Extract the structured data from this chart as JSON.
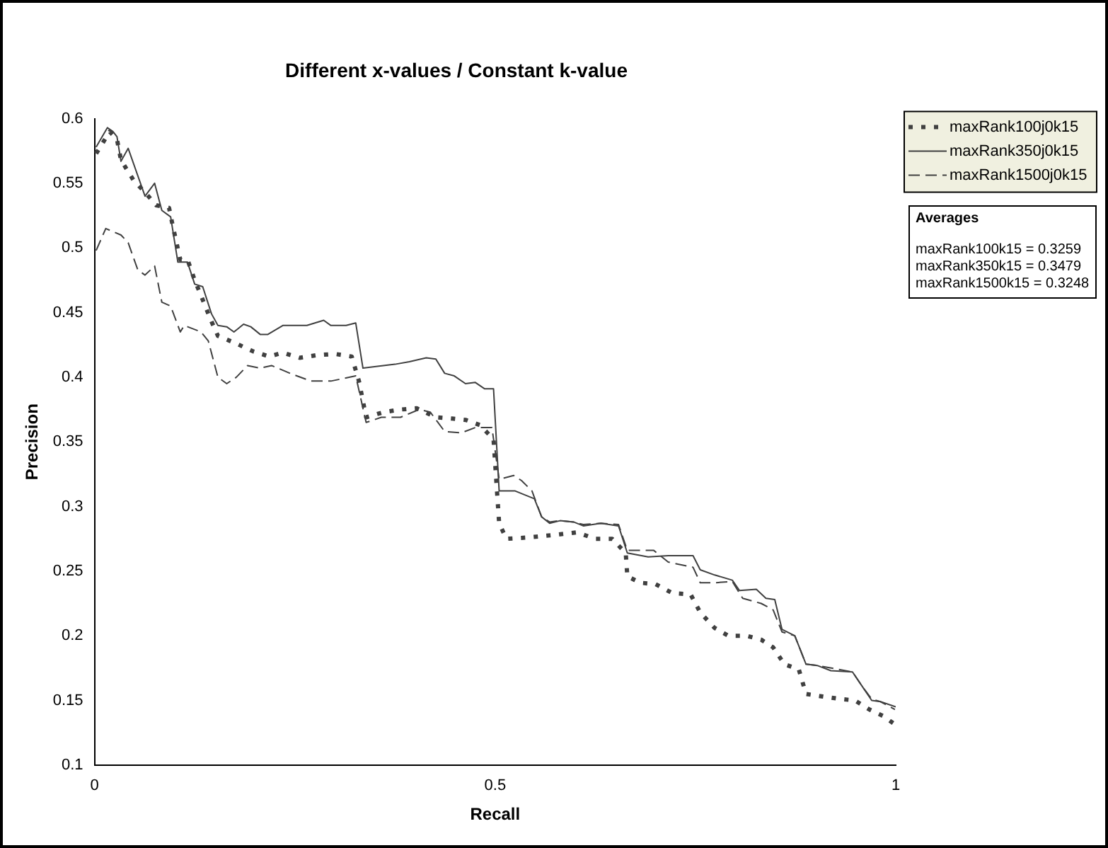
{
  "chart_data": {
    "type": "line",
    "title": "Different x-values / Constant k-value",
    "xlabel": "Recall",
    "ylabel": "Precision",
    "xlim": [
      0,
      1
    ],
    "xticks": [
      0,
      0.5,
      1
    ],
    "ylim": [
      0.1,
      0.6
    ],
    "yticks": [
      0.1,
      0.15,
      0.2,
      0.25,
      0.3,
      0.35,
      0.4,
      0.45,
      0.5,
      0.55,
      0.6
    ],
    "grid": false,
    "legend": "top right",
    "marker": "none",
    "annotations": [
      "Averages",
      "maxRank100k15 = 0.3259",
      "maxRank350k15 = 0.3479",
      "maxRank1500k15 = 0.3248"
    ],
    "series": [
      {
        "name": "maxRank100j0k15",
        "color": "#404040",
        "line_style": "dotted",
        "x": [
          0.002,
          0.019,
          0.028,
          0.033,
          0.049,
          0.063,
          0.077,
          0.093,
          0.098,
          0.107,
          0.116,
          0.125,
          0.133,
          0.146,
          0.154,
          0.177,
          0.198,
          0.218,
          0.235,
          0.256,
          0.277,
          0.3,
          0.321,
          0.33,
          0.339,
          0.361,
          0.382,
          0.402,
          0.426,
          0.446,
          0.463,
          0.481,
          0.498,
          0.505,
          0.514,
          0.54,
          0.575,
          0.602,
          0.625,
          0.646,
          0.663,
          0.665,
          0.681,
          0.7,
          0.721,
          0.744,
          0.756,
          0.774,
          0.791,
          0.814,
          0.832,
          0.847,
          0.861,
          0.879,
          0.888,
          0.909,
          0.932,
          0.949,
          0.967,
          0.984,
          1.0
        ],
        "values": [
          0.573,
          0.59,
          0.584,
          0.568,
          0.552,
          0.543,
          0.533,
          0.531,
          0.516,
          0.491,
          0.491,
          0.475,
          0.463,
          0.443,
          0.432,
          0.426,
          0.42,
          0.416,
          0.419,
          0.415,
          0.417,
          0.418,
          0.416,
          0.397,
          0.369,
          0.373,
          0.375,
          0.376,
          0.369,
          0.368,
          0.367,
          0.363,
          0.352,
          0.287,
          0.275,
          0.276,
          0.278,
          0.28,
          0.275,
          0.275,
          0.264,
          0.246,
          0.241,
          0.24,
          0.233,
          0.232,
          0.218,
          0.206,
          0.2,
          0.2,
          0.197,
          0.191,
          0.178,
          0.174,
          0.155,
          0.153,
          0.151,
          0.15,
          0.143,
          0.138,
          0.131
        ]
      },
      {
        "name": "maxRank350j0k15",
        "color": "#404040",
        "line_style": "solid",
        "x": [
          0.002,
          0.016,
          0.023,
          0.028,
          0.033,
          0.042,
          0.063,
          0.075,
          0.084,
          0.095,
          0.104,
          0.116,
          0.125,
          0.135,
          0.146,
          0.154,
          0.165,
          0.174,
          0.186,
          0.195,
          0.207,
          0.216,
          0.235,
          0.265,
          0.286,
          0.295,
          0.314,
          0.326,
          0.335,
          0.375,
          0.393,
          0.414,
          0.426,
          0.437,
          0.449,
          0.463,
          0.475,
          0.487,
          0.498,
          0.505,
          0.525,
          0.549,
          0.558,
          0.568,
          0.581,
          0.598,
          0.61,
          0.632,
          0.654,
          0.665,
          0.691,
          0.716,
          0.747,
          0.756,
          0.774,
          0.796,
          0.805,
          0.826,
          0.838,
          0.849,
          0.858,
          0.874,
          0.888,
          0.902,
          0.919,
          0.946,
          0.958,
          0.97,
          0.981,
          1.0
        ],
        "values": [
          0.578,
          0.593,
          0.59,
          0.586,
          0.567,
          0.577,
          0.54,
          0.55,
          0.529,
          0.524,
          0.489,
          0.489,
          0.472,
          0.47,
          0.449,
          0.44,
          0.439,
          0.435,
          0.441,
          0.439,
          0.433,
          0.433,
          0.44,
          0.44,
          0.444,
          0.44,
          0.44,
          0.442,
          0.407,
          0.41,
          0.412,
          0.415,
          0.414,
          0.403,
          0.401,
          0.395,
          0.396,
          0.391,
          0.391,
          0.312,
          0.312,
          0.306,
          0.292,
          0.287,
          0.289,
          0.288,
          0.285,
          0.287,
          0.285,
          0.264,
          0.261,
          0.262,
          0.262,
          0.251,
          0.247,
          0.243,
          0.235,
          0.236,
          0.229,
          0.228,
          0.205,
          0.2,
          0.178,
          0.177,
          0.173,
          0.172,
          0.161,
          0.15,
          0.149,
          0.145
        ]
      },
      {
        "name": "maxRank1500j0k15",
        "color": "#404040",
        "line_style": "dashed",
        "x": [
          0.002,
          0.014,
          0.033,
          0.042,
          0.054,
          0.063,
          0.075,
          0.084,
          0.095,
          0.107,
          0.112,
          0.133,
          0.142,
          0.154,
          0.165,
          0.177,
          0.191,
          0.207,
          0.221,
          0.244,
          0.27,
          0.295,
          0.326,
          0.339,
          0.358,
          0.382,
          0.405,
          0.419,
          0.437,
          0.458,
          0.475,
          0.496,
          0.505,
          0.523,
          0.533,
          0.546,
          0.558,
          0.568,
          0.581,
          0.598,
          0.61,
          0.632,
          0.654,
          0.665,
          0.698,
          0.716,
          0.747,
          0.756,
          0.774,
          0.796,
          0.809,
          0.832,
          0.847,
          0.858,
          0.874,
          0.888,
          0.902,
          0.946,
          0.958,
          0.97,
          0.981,
          0.999
        ],
        "values": [
          0.498,
          0.515,
          0.51,
          0.504,
          0.483,
          0.479,
          0.486,
          0.458,
          0.455,
          0.435,
          0.44,
          0.435,
          0.428,
          0.4,
          0.395,
          0.4,
          0.409,
          0.407,
          0.409,
          0.403,
          0.397,
          0.397,
          0.401,
          0.365,
          0.369,
          0.369,
          0.375,
          0.373,
          0.358,
          0.357,
          0.361,
          0.361,
          0.321,
          0.324,
          0.32,
          0.312,
          0.292,
          0.288,
          0.289,
          0.288,
          0.286,
          0.287,
          0.286,
          0.266,
          0.266,
          0.257,
          0.253,
          0.241,
          0.241,
          0.242,
          0.229,
          0.225,
          0.22,
          0.203,
          0.2,
          0.178,
          0.177,
          0.172,
          0.161,
          0.151,
          0.149,
          0.143
        ]
      }
    ]
  }
}
